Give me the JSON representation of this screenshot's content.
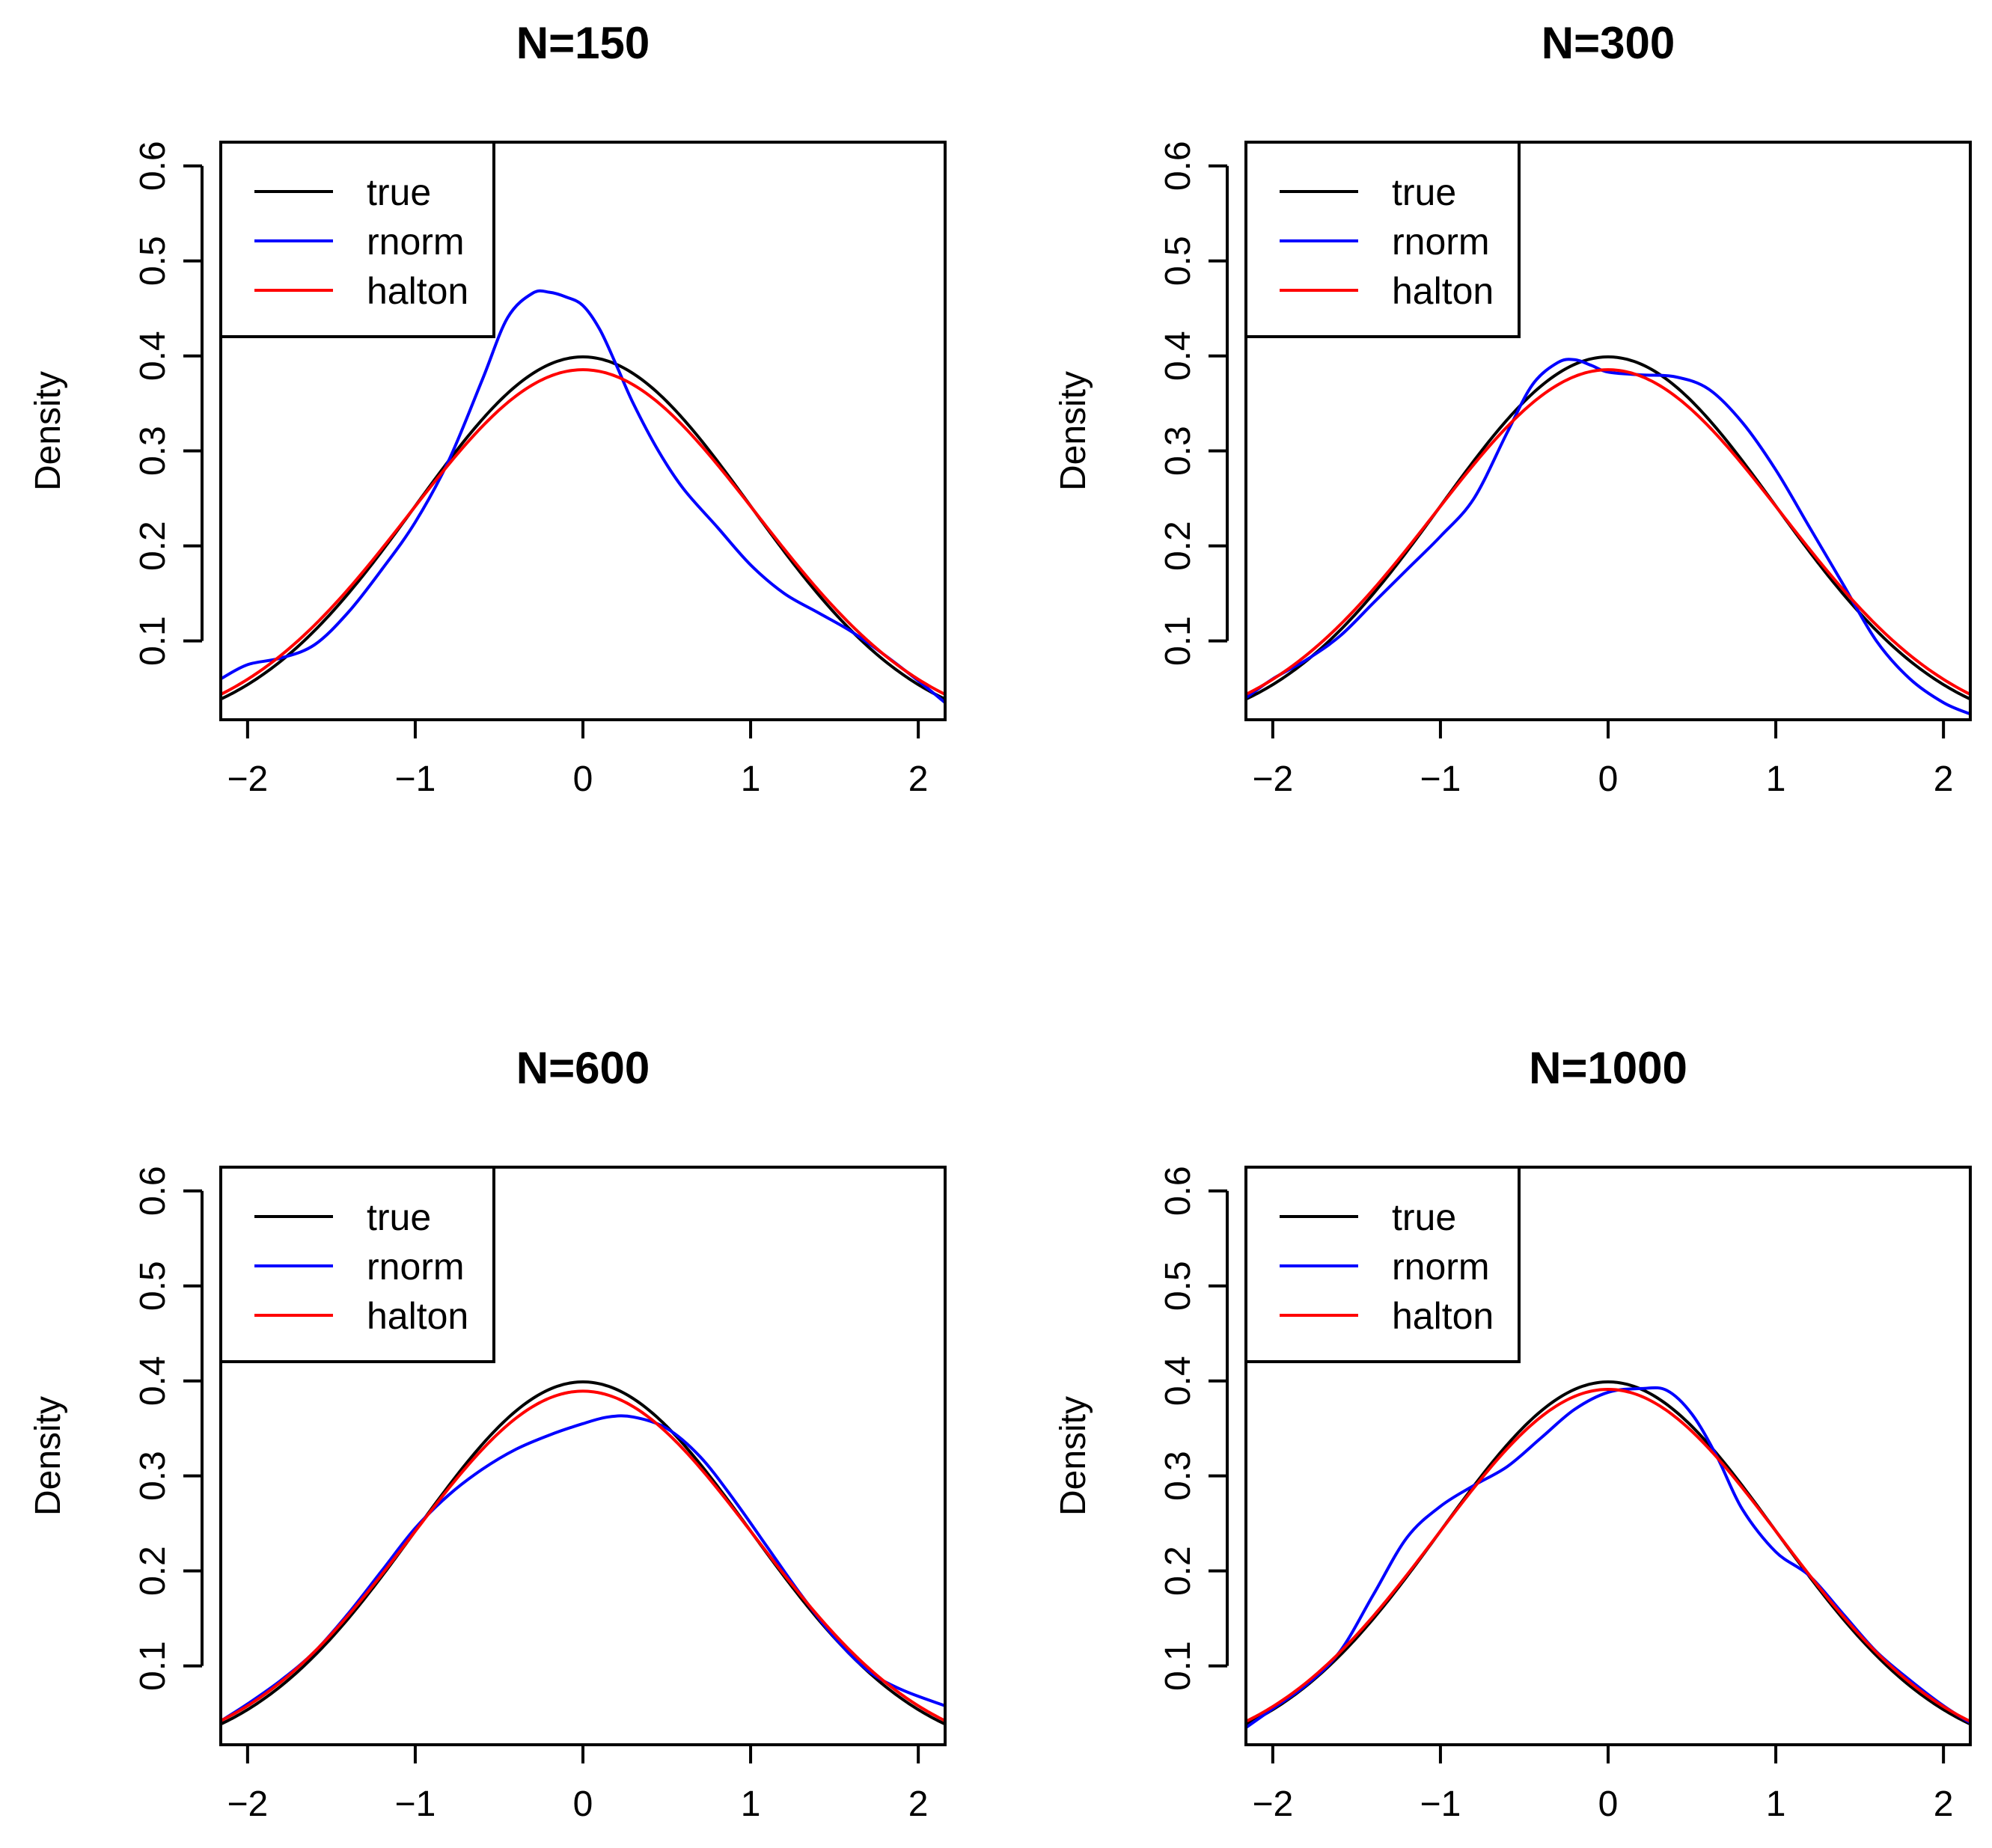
{
  "figure": {
    "panel_count": 4,
    "layout": "2x2 grid"
  },
  "chart_data": [
    {
      "type": "line",
      "title": "N=150",
      "xlabel": "",
      "ylabel": "Density",
      "xlim": [
        -2.16,
        2.16
      ],
      "ylim": [
        0.017,
        0.625
      ],
      "xticks": [
        -2,
        -1,
        0,
        1,
        2
      ],
      "xtick_labels": [
        "−2",
        "−1",
        "0",
        "1",
        "2"
      ],
      "yticks": [
        0.1,
        0.2,
        0.3,
        0.4,
        0.5,
        0.6
      ],
      "ytick_labels": [
        "0.1",
        "0.2",
        "0.3",
        "0.4",
        "0.5",
        "0.6"
      ],
      "legend": {
        "position": "top-left",
        "entries": [
          "true",
          "rnorm",
          "halton"
        ]
      },
      "series": [
        {
          "name": "true",
          "color": "#000000",
          "sd": 1.0
        },
        {
          "name": "rnorm",
          "color": "#0000ff",
          "x": [
            -2.16,
            -2.0,
            -1.8,
            -1.6,
            -1.4,
            -1.2,
            -1.0,
            -0.8,
            -0.6,
            -0.45,
            -0.3,
            -0.2,
            -0.1,
            0.0,
            0.1,
            0.2,
            0.3,
            0.45,
            0.6,
            0.8,
            1.0,
            1.2,
            1.4,
            1.6,
            1.8,
            2.0,
            2.16
          ],
          "y": [
            0.06,
            0.075,
            0.082,
            0.096,
            0.13,
            0.175,
            0.225,
            0.29,
            0.375,
            0.44,
            0.466,
            0.467,
            0.462,
            0.453,
            0.428,
            0.39,
            0.35,
            0.3,
            0.26,
            0.22,
            0.18,
            0.15,
            0.13,
            0.11,
            0.085,
            0.058,
            0.035
          ]
        },
        {
          "name": "halton",
          "color": "#ff0000",
          "sd": 1.035
        }
      ]
    },
    {
      "type": "line",
      "title": "N=300",
      "xlabel": "",
      "ylabel": "Density",
      "xlim": [
        -2.16,
        2.16
      ],
      "ylim": [
        0.017,
        0.625
      ],
      "xticks": [
        -2,
        -1,
        0,
        1,
        2
      ],
      "xtick_labels": [
        "−2",
        "−1",
        "0",
        "1",
        "2"
      ],
      "yticks": [
        0.1,
        0.2,
        0.3,
        0.4,
        0.5,
        0.6
      ],
      "ytick_labels": [
        "0.1",
        "0.2",
        "0.3",
        "0.4",
        "0.5",
        "0.6"
      ],
      "legend": {
        "position": "top-left",
        "entries": [
          "true",
          "rnorm",
          "halton"
        ]
      },
      "series": [
        {
          "name": "true",
          "color": "#000000",
          "sd": 1.0
        },
        {
          "name": "rnorm",
          "color": "#0000ff",
          "x": [
            -2.16,
            -2.0,
            -1.8,
            -1.6,
            -1.4,
            -1.2,
            -1.0,
            -0.8,
            -0.6,
            -0.45,
            -0.3,
            -0.2,
            -0.1,
            0.0,
            0.2,
            0.4,
            0.6,
            0.8,
            1.0,
            1.2,
            1.4,
            1.6,
            1.8,
            2.0,
            2.16
          ],
          "y": [
            0.04,
            0.06,
            0.08,
            0.105,
            0.14,
            0.175,
            0.21,
            0.25,
            0.32,
            0.37,
            0.393,
            0.396,
            0.39,
            0.383,
            0.38,
            0.378,
            0.365,
            0.33,
            0.28,
            0.22,
            0.16,
            0.1,
            0.06,
            0.035,
            0.023
          ]
        },
        {
          "name": "halton",
          "color": "#ff0000",
          "sd": 1.035
        }
      ]
    },
    {
      "type": "line",
      "title": "N=600",
      "xlabel": "",
      "ylabel": "Density",
      "xlim": [
        -2.16,
        2.16
      ],
      "ylim": [
        0.017,
        0.625
      ],
      "xticks": [
        -2,
        -1,
        0,
        1,
        2
      ],
      "xtick_labels": [
        "−2",
        "−1",
        "0",
        "1",
        "2"
      ],
      "yticks": [
        0.1,
        0.2,
        0.3,
        0.4,
        0.5,
        0.6
      ],
      "ytick_labels": [
        "0.1",
        "0.2",
        "0.3",
        "0.4",
        "0.5",
        "0.6"
      ],
      "legend": {
        "position": "top-left",
        "entries": [
          "true",
          "rnorm",
          "halton"
        ]
      },
      "series": [
        {
          "name": "true",
          "color": "#000000",
          "sd": 1.0
        },
        {
          "name": "rnorm",
          "color": "#0000ff",
          "x": [
            -2.16,
            -2.0,
            -1.8,
            -1.6,
            -1.4,
            -1.2,
            -1.0,
            -0.8,
            -0.6,
            -0.4,
            -0.2,
            0.0,
            0.15,
            0.3,
            0.5,
            0.7,
            0.9,
            1.1,
            1.3,
            1.5,
            1.7,
            1.9,
            2.16
          ],
          "y": [
            0.042,
            0.06,
            0.085,
            0.115,
            0.155,
            0.2,
            0.245,
            0.28,
            0.307,
            0.328,
            0.343,
            0.355,
            0.362,
            0.362,
            0.35,
            0.32,
            0.275,
            0.225,
            0.175,
            0.13,
            0.095,
            0.075,
            0.058
          ]
        },
        {
          "name": "halton",
          "color": "#ff0000",
          "sd": 1.025
        }
      ]
    },
    {
      "type": "line",
      "title": "N=1000",
      "xlabel": "",
      "ylabel": "Density",
      "xlim": [
        -2.16,
        2.16
      ],
      "ylim": [
        0.017,
        0.625
      ],
      "xticks": [
        -2,
        -1,
        0,
        1,
        2
      ],
      "xtick_labels": [
        "−2",
        "−1",
        "0",
        "1",
        "2"
      ],
      "yticks": [
        0.1,
        0.2,
        0.3,
        0.4,
        0.5,
        0.6
      ],
      "ytick_labels": [
        "0.1",
        "0.2",
        "0.3",
        "0.4",
        "0.5",
        "0.6"
      ],
      "legend": {
        "position": "top-left",
        "entries": [
          "true",
          "rnorm",
          "halton"
        ]
      },
      "series": [
        {
          "name": "true",
          "color": "#000000",
          "sd": 1.0
        },
        {
          "name": "rnorm",
          "color": "#0000ff",
          "x": [
            -2.16,
            -2.0,
            -1.8,
            -1.6,
            -1.4,
            -1.2,
            -1.0,
            -0.8,
            -0.6,
            -0.4,
            -0.2,
            0.0,
            0.2,
            0.35,
            0.5,
            0.65,
            0.8,
            1.0,
            1.2,
            1.4,
            1.6,
            1.8,
            2.0,
            2.16
          ],
          "y": [
            0.035,
            0.055,
            0.08,
            0.115,
            0.175,
            0.235,
            0.268,
            0.29,
            0.31,
            0.34,
            0.37,
            0.388,
            0.392,
            0.39,
            0.365,
            0.32,
            0.265,
            0.22,
            0.195,
            0.155,
            0.115,
            0.085,
            0.058,
            0.04
          ]
        },
        {
          "name": "halton",
          "color": "#ff0000",
          "sd": 1.02
        }
      ]
    }
  ]
}
